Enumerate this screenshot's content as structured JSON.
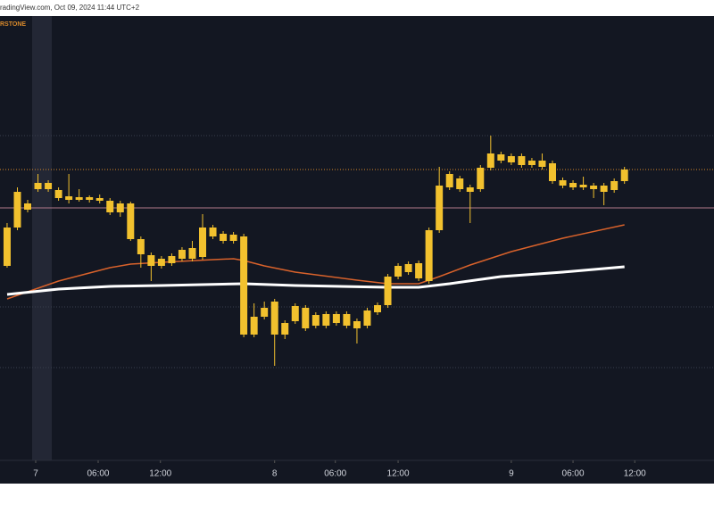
{
  "chart_data": {
    "type": "candlestick",
    "title": "radingView.com, Oct 09, 2024 11:44 UTC+2",
    "symbol_label": "RSTONE",
    "color": "#f2c12e",
    "open": [
      268,
      311,
      331,
      354,
      361,
      353,
      342,
      345,
      342,
      344,
      341,
      328,
      338,
      298,
      280,
      276,
      271,
      276,
      276,
      278,
      311,
      304,
      303,
      301,
      191,
      211,
      228,
      191,
      206,
      221,
      201,
      201,
      204,
      214,
      198,
      201,
      216,
      224,
      256,
      261,
      254,
      251,
      308,
      356,
      366,
      356,
      354,
      378,
      393,
      391,
      381,
      386,
      386,
      383,
      364,
      361,
      356,
      358,
      351,
      353,
      363
    ],
    "high": [
      316,
      356,
      342,
      371,
      364,
      356,
      371,
      354,
      347,
      348,
      344,
      341,
      340,
      301,
      283,
      279,
      282,
      289,
      296,
      326,
      314,
      307,
      306,
      304,
      226,
      228,
      231,
      207,
      226,
      224,
      216,
      217,
      217,
      217,
      209,
      221,
      227,
      259,
      271,
      273,
      274,
      311,
      379,
      374,
      369,
      359,
      381,
      414,
      396,
      394,
      394,
      389,
      394,
      386,
      367,
      364,
      368,
      361,
      361,
      366,
      379
    ],
    "low": [
      266,
      308,
      328,
      351,
      351,
      341,
      338,
      340,
      339,
      338,
      325,
      323,
      296,
      266,
      251,
      265,
      268,
      273,
      273,
      275,
      298,
      293,
      293,
      188,
      188,
      208,
      156,
      186,
      203,
      195,
      198,
      198,
      201,
      198,
      181,
      198,
      213,
      221,
      253,
      258,
      251,
      248,
      305,
      353,
      351,
      316,
      351,
      375,
      383,
      381,
      378,
      378,
      376,
      360,
      355,
      353,
      353,
      344,
      336,
      350,
      360
    ],
    "close": [
      311,
      351,
      338,
      361,
      354,
      344,
      346,
      342,
      345,
      341,
      328,
      338,
      298,
      281,
      268,
      268,
      279,
      286,
      288,
      311,
      301,
      296,
      296,
      191,
      211,
      221,
      191,
      204,
      223,
      198,
      213,
      214,
      214,
      201,
      206,
      218,
      224,
      256,
      268,
      270,
      271,
      308,
      358,
      371,
      354,
      351,
      378,
      394,
      386,
      384,
      391,
      381,
      379,
      363,
      358,
      356,
      359,
      354,
      358,
      363,
      376
    ],
    "series": [
      {
        "color": "#d9622b",
        "x": [
          0,
          5,
          10,
          12,
          15,
          20,
          22,
          23,
          25,
          28,
          34,
          37,
          40,
          42,
          45,
          49,
          54,
          60
        ],
        "values": [
          231,
          251,
          266,
          270,
          272,
          275,
          276,
          274,
          268,
          261,
          252,
          248,
          248,
          256,
          269,
          284,
          299,
          314
        ]
      },
      {
        "color": "#ffffff",
        "x": [
          0,
          5,
          10,
          15,
          23,
          28,
          37,
          40,
          43,
          48,
          54,
          60
        ],
        "values": [
          236,
          242,
          245,
          246,
          248,
          246,
          244,
          244,
          248,
          256,
          261,
          267
        ]
      }
    ],
    "levels": [
      {
        "value": 376,
        "color": "#d98a2b",
        "style": "dotted"
      },
      {
        "value": 333,
        "color": "#b07a8a",
        "style": "solid"
      },
      {
        "value": 414,
        "color": "#3a3f4d",
        "style": "dotted"
      },
      {
        "value": 222,
        "color": "#3a3f4d",
        "style": "dotted"
      },
      {
        "value": 154,
        "color": "#3a3f4d",
        "style": "dotted"
      }
    ],
    "xlim": [
      -0.69,
      68.7
    ],
    "ylim": [
      50,
      548
    ],
    "xticks": [
      {
        "value": 2.78,
        "label": "7"
      },
      {
        "value": 8.85,
        "label": "06:00"
      },
      {
        "value": 14.9,
        "label": "12:00"
      },
      {
        "value": 26.0,
        "label": "8"
      },
      {
        "value": 31.9,
        "label": "06:00"
      },
      {
        "value": 38.0,
        "label": "12:00"
      },
      {
        "value": 49.0,
        "label": "9"
      },
      {
        "value": 55.0,
        "label": "06:00"
      },
      {
        "value": 61.0,
        "label": "12:00"
      }
    ]
  }
}
